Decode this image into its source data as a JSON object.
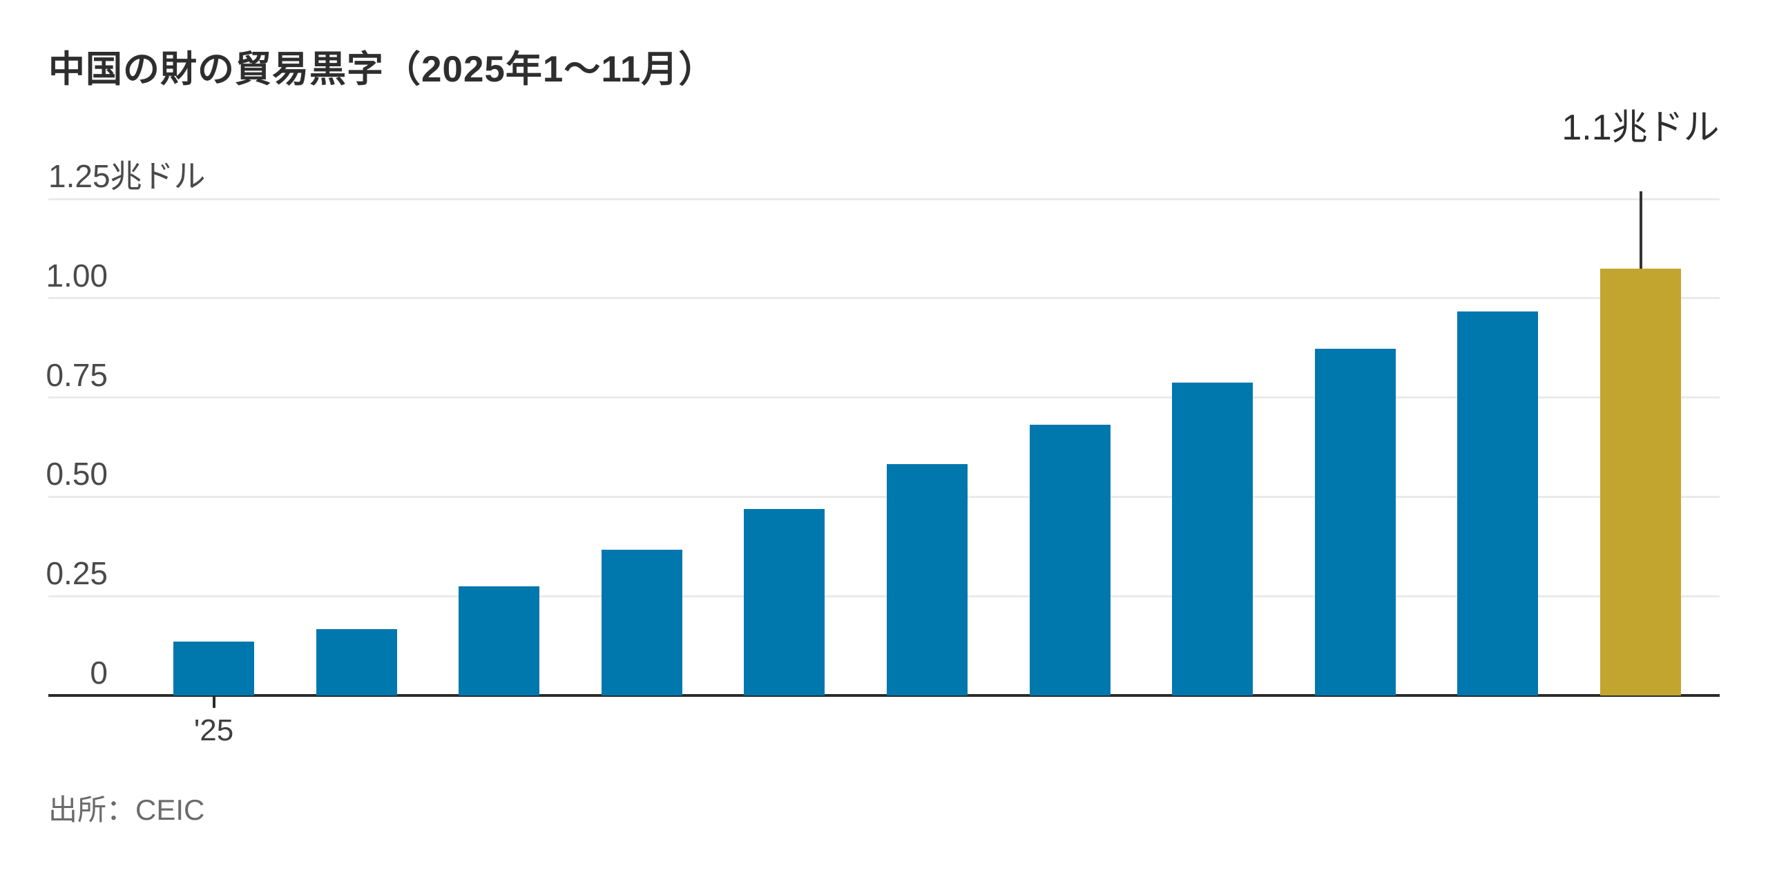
{
  "chart_data": {
    "type": "bar",
    "title": "中国の財の貿易黒字（2025年1〜11月）",
    "values": [
      0.135,
      0.167,
      0.274,
      0.366,
      0.47,
      0.582,
      0.681,
      0.787,
      0.873,
      0.967,
      1.075
    ],
    "highlight_index": 10,
    "y_ticks": [
      {
        "value": 1.25,
        "label": "1.25兆ドル"
      },
      {
        "value": 1.0,
        "label": "1.00"
      },
      {
        "value": 0.75,
        "label": "0.75"
      },
      {
        "value": 0.5,
        "label": "0.50"
      },
      {
        "value": 0.25,
        "label": "0.25"
      },
      {
        "value": 0,
        "label": "0"
      }
    ],
    "ylim": [
      0,
      1.25
    ],
    "grid": "horizontal",
    "x_first_tick_label": "'25",
    "annotation": {
      "text": "1.1兆ドル",
      "bar_index": 10
    },
    "colors": {
      "bar": "#0077AD",
      "highlight": "#C2A52F",
      "axis": "#2B2B2B",
      "gridline": "#EAEAEA",
      "annotation_line": "#333333"
    }
  },
  "source": {
    "label": "出所：CEIC"
  }
}
